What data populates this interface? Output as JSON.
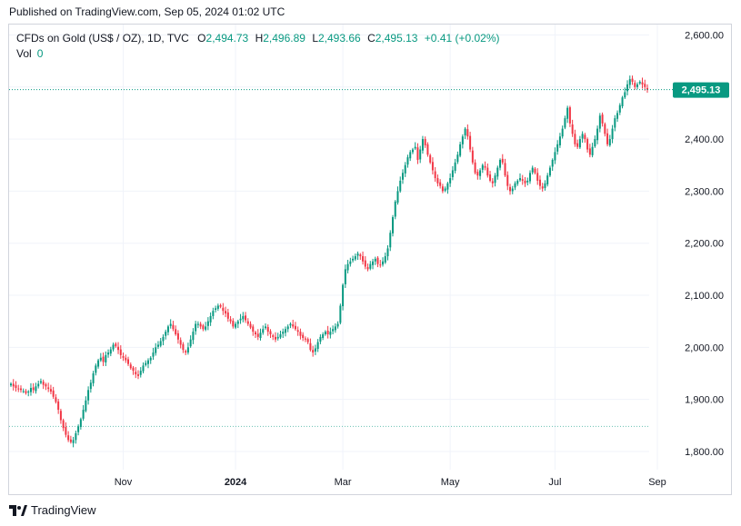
{
  "header": {
    "published": "Published on TradingView.com, Sep 05, 2024 01:02 UTC"
  },
  "legend": {
    "symbol": "CFDs on Gold (US$ / OZ), 1D, TVC",
    "o_label": "O",
    "o_value": "2,494.73",
    "h_label": "H",
    "h_value": "2,496.89",
    "l_label": "L",
    "l_value": "2,493.66",
    "c_label": "C",
    "c_value": "2,495.13",
    "change": "+0.41 (+0.02%)",
    "vol_label": "Vol",
    "vol_value": "0"
  },
  "footer": {
    "brand": "TradingView"
  },
  "colors": {
    "up": "#089981",
    "down": "#f23645",
    "grid": "#f0f3fa",
    "axis_text": "#131722"
  },
  "chart_data": {
    "type": "candlestick",
    "ylim": [
      1765,
      2620
    ],
    "y_ticks": [
      {
        "value": 2600,
        "label": "2,600.00"
      },
      {
        "value": 2500,
        "label": "2,500.00"
      },
      {
        "value": 2400,
        "label": "2,400.00"
      },
      {
        "value": 2300,
        "label": "2,300.00"
      },
      {
        "value": 2200,
        "label": "2,200.00"
      },
      {
        "value": 2100,
        "label": "2,100.00"
      },
      {
        "value": 2000,
        "label": "2,000.00"
      },
      {
        "value": 1900,
        "label": "1,900.00"
      },
      {
        "value": 1800,
        "label": "1,800.00"
      }
    ],
    "x_ticks": [
      {
        "label": "Nov",
        "bold": false
      },
      {
        "label": "2024",
        "bold": true
      },
      {
        "label": "Mar",
        "bold": false
      },
      {
        "label": "May",
        "bold": false
      },
      {
        "label": "Jul",
        "bold": false
      },
      {
        "label": "Sep",
        "bold": false
      }
    ],
    "last_price": {
      "value": 2495.13,
      "label": "2,495.13"
    },
    "reference_line": 1848,
    "closes": [
      1930,
      1925,
      1922,
      1920,
      1918,
      1916,
      1912,
      1915,
      1922,
      1918,
      1925,
      1930,
      1935,
      1928,
      1925,
      1920,
      1915,
      1905,
      1895,
      1880,
      1860,
      1845,
      1832,
      1822,
      1818,
      1822,
      1835,
      1848,
      1862,
      1880,
      1898,
      1918,
      1932,
      1950,
      1965,
      1975,
      1980,
      1972,
      1985,
      1990,
      1996,
      2005,
      2002,
      1995,
      1985,
      1980,
      1975,
      1968,
      1960,
      1955,
      1948,
      1945,
      1955,
      1965,
      1970,
      1975,
      1980,
      1990,
      2000,
      2005,
      2012,
      2020,
      2030,
      2040,
      2045,
      2035,
      2025,
      2015,
      2005,
      1995,
      1990,
      2000,
      2015,
      2030,
      2045,
      2045,
      2040,
      2035,
      2040,
      2050,
      2060,
      2070,
      2075,
      2080,
      2078,
      2070,
      2065,
      2055,
      2050,
      2040,
      2045,
      2050,
      2055,
      2060,
      2052,
      2045,
      2038,
      2030,
      2025,
      2020,
      2028,
      2035,
      2040,
      2030,
      2025,
      2020,
      2015,
      2020,
      2025,
      2030,
      2035,
      2040,
      2045,
      2040,
      2035,
      2030,
      2022,
      2018,
      2015,
      2010,
      1995,
      1990,
      1998,
      2010,
      2020,
      2025,
      2030,
      2025,
      2030,
      2035,
      2040,
      2045,
      2080,
      2120,
      2150,
      2160,
      2165,
      2170,
      2175,
      2180,
      2175,
      2165,
      2155,
      2150,
      2160,
      2165,
      2170,
      2160,
      2158,
      2165,
      2175,
      2190,
      2220,
      2250,
      2280,
      2300,
      2320,
      2335,
      2350,
      2365,
      2375,
      2380,
      2385,
      2360,
      2380,
      2400,
      2388,
      2370,
      2355,
      2340,
      2325,
      2315,
      2310,
      2300,
      2305,
      2315,
      2325,
      2340,
      2355,
      2370,
      2390,
      2405,
      2420,
      2405,
      2380,
      2355,
      2335,
      2330,
      2340,
      2350,
      2345,
      2330,
      2320,
      2315,
      2330,
      2345,
      2360,
      2355,
      2330,
      2310,
      2300,
      2305,
      2315,
      2320,
      2325,
      2320,
      2315,
      2320,
      2335,
      2345,
      2335,
      2320,
      2310,
      2305,
      2315,
      2330,
      2345,
      2360,
      2375,
      2390,
      2405,
      2420,
      2440,
      2460,
      2430,
      2410,
      2390,
      2385,
      2400,
      2410,
      2400,
      2380,
      2370,
      2385,
      2400,
      2420,
      2445,
      2430,
      2410,
      2390,
      2400,
      2420,
      2440,
      2450,
      2465,
      2480,
      2490,
      2505,
      2515,
      2510,
      2500,
      2505,
      2510,
      2505,
      2500,
      2495
    ]
  }
}
